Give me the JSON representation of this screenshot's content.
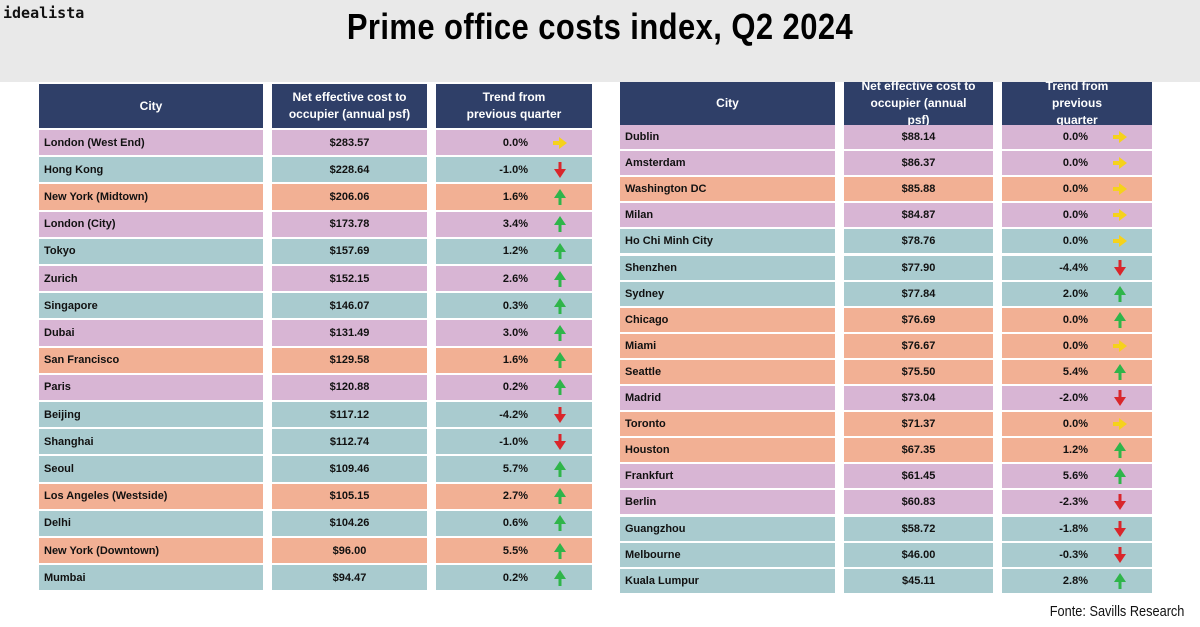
{
  "brand": "idealista",
  "title": "Prime office costs index, Q2 2024",
  "source": "Fonte: Savills Research",
  "colors": {
    "header": "#2f3f68",
    "europe_middle_east": "#d8b5d4",
    "asia_pacific": "#a9cbcf",
    "americas": "#f2b094",
    "up": "#2fb54a",
    "down": "#d9262b",
    "flat": "#f5d21c"
  },
  "chart_data": {
    "type": "table",
    "title": "Prime office costs index, Q2 2024",
    "columns": [
      "City",
      "Net effective cost to occupier (annual psf)",
      "Trend from previous quarter"
    ],
    "tables": [
      {
        "rows": [
          {
            "city": "London (West End)",
            "cost": "$283.57",
            "trend": "0.0%",
            "arrow": "flat",
            "region": "europe_middle_east"
          },
          {
            "city": "Hong Kong",
            "cost": "$228.64",
            "trend": "-1.0%",
            "arrow": "down",
            "region": "asia_pacific"
          },
          {
            "city": "New York (Midtown)",
            "cost": "$206.06",
            "trend": "1.6%",
            "arrow": "up",
            "region": "americas"
          },
          {
            "city": "London (City)",
            "cost": "$173.78",
            "trend": "3.4%",
            "arrow": "up",
            "region": "europe_middle_east"
          },
          {
            "city": "Tokyo",
            "cost": "$157.69",
            "trend": "1.2%",
            "arrow": "up",
            "region": "asia_pacific"
          },
          {
            "city": "Zurich",
            "cost": "$152.15",
            "trend": "2.6%",
            "arrow": "up",
            "region": "europe_middle_east"
          },
          {
            "city": "Singapore",
            "cost": "$146.07",
            "trend": "0.3%",
            "arrow": "up",
            "region": "asia_pacific"
          },
          {
            "city": "Dubai",
            "cost": "$131.49",
            "trend": "3.0%",
            "arrow": "up",
            "region": "europe_middle_east"
          },
          {
            "city": "San Francisco",
            "cost": "$129.58",
            "trend": "1.6%",
            "arrow": "up",
            "region": "americas"
          },
          {
            "city": "Paris",
            "cost": "$120.88",
            "trend": "0.2%",
            "arrow": "up",
            "region": "europe_middle_east"
          },
          {
            "city": "Beijing",
            "cost": "$117.12",
            "trend": "-4.2%",
            "arrow": "down",
            "region": "asia_pacific"
          },
          {
            "city": "Shanghai",
            "cost": "$112.74",
            "trend": "-1.0%",
            "arrow": "down",
            "region": "asia_pacific"
          },
          {
            "city": "Seoul",
            "cost": "$109.46",
            "trend": "5.7%",
            "arrow": "up",
            "region": "asia_pacific"
          },
          {
            "city": "Los Angeles (Westside)",
            "cost": "$105.15",
            "trend": "2.7%",
            "arrow": "up",
            "region": "americas"
          },
          {
            "city": "Delhi",
            "cost": "$104.26",
            "trend": "0.6%",
            "arrow": "up",
            "region": "asia_pacific"
          },
          {
            "city": "New York (Downtown)",
            "cost": "$96.00",
            "trend": "5.5%",
            "arrow": "up",
            "region": "americas"
          },
          {
            "city": "Mumbai",
            "cost": "$94.47",
            "trend": "0.2%",
            "arrow": "up",
            "region": "asia_pacific"
          }
        ]
      },
      {
        "rows": [
          {
            "city": "Dublin",
            "cost": "$88.14",
            "trend": "0.0%",
            "arrow": "flat",
            "region": "europe_middle_east"
          },
          {
            "city": "Amsterdam",
            "cost": "$86.37",
            "trend": "0.0%",
            "arrow": "flat",
            "region": "europe_middle_east"
          },
          {
            "city": "Washington DC",
            "cost": "$85.88",
            "trend": "0.0%",
            "arrow": "flat",
            "region": "americas"
          },
          {
            "city": "Milan",
            "cost": "$84.87",
            "trend": "0.0%",
            "arrow": "flat",
            "region": "europe_middle_east"
          },
          {
            "city": "Ho Chi Minh City",
            "cost": "$78.76",
            "trend": "0.0%",
            "arrow": "flat",
            "region": "asia_pacific"
          },
          {
            "city": "Shenzhen",
            "cost": "$77.90",
            "trend": "-4.4%",
            "arrow": "down",
            "region": "asia_pacific"
          },
          {
            "city": "Sydney",
            "cost": "$77.84",
            "trend": "2.0%",
            "arrow": "up",
            "region": "asia_pacific"
          },
          {
            "city": "Chicago",
            "cost": "$76.69",
            "trend": "0.0%",
            "arrow": "up",
            "region": "americas"
          },
          {
            "city": "Miami",
            "cost": "$76.67",
            "trend": "0.0%",
            "arrow": "flat",
            "region": "americas"
          },
          {
            "city": "Seattle",
            "cost": "$75.50",
            "trend": "5.4%",
            "arrow": "up",
            "region": "americas"
          },
          {
            "city": "Madrid",
            "cost": "$73.04",
            "trend": "-2.0%",
            "arrow": "down",
            "region": "europe_middle_east"
          },
          {
            "city": "Toronto",
            "cost": "$71.37",
            "trend": "0.0%",
            "arrow": "flat",
            "region": "americas"
          },
          {
            "city": "Houston",
            "cost": "$67.35",
            "trend": "1.2%",
            "arrow": "up",
            "region": "americas"
          },
          {
            "city": "Frankfurt",
            "cost": "$61.45",
            "trend": "5.6%",
            "arrow": "up",
            "region": "europe_middle_east"
          },
          {
            "city": "Berlin",
            "cost": "$60.83",
            "trend": "-2.3%",
            "arrow": "down",
            "region": "europe_middle_east"
          },
          {
            "city": "Guangzhou",
            "cost": "$58.72",
            "trend": "-1.8%",
            "arrow": "down",
            "region": "asia_pacific"
          },
          {
            "city": "Melbourne",
            "cost": "$46.00",
            "trend": "-0.3%",
            "arrow": "down",
            "region": "asia_pacific"
          },
          {
            "city": "Kuala Lumpur",
            "cost": "$45.11",
            "trend": "2.8%",
            "arrow": "up",
            "region": "asia_pacific"
          }
        ]
      }
    ]
  }
}
